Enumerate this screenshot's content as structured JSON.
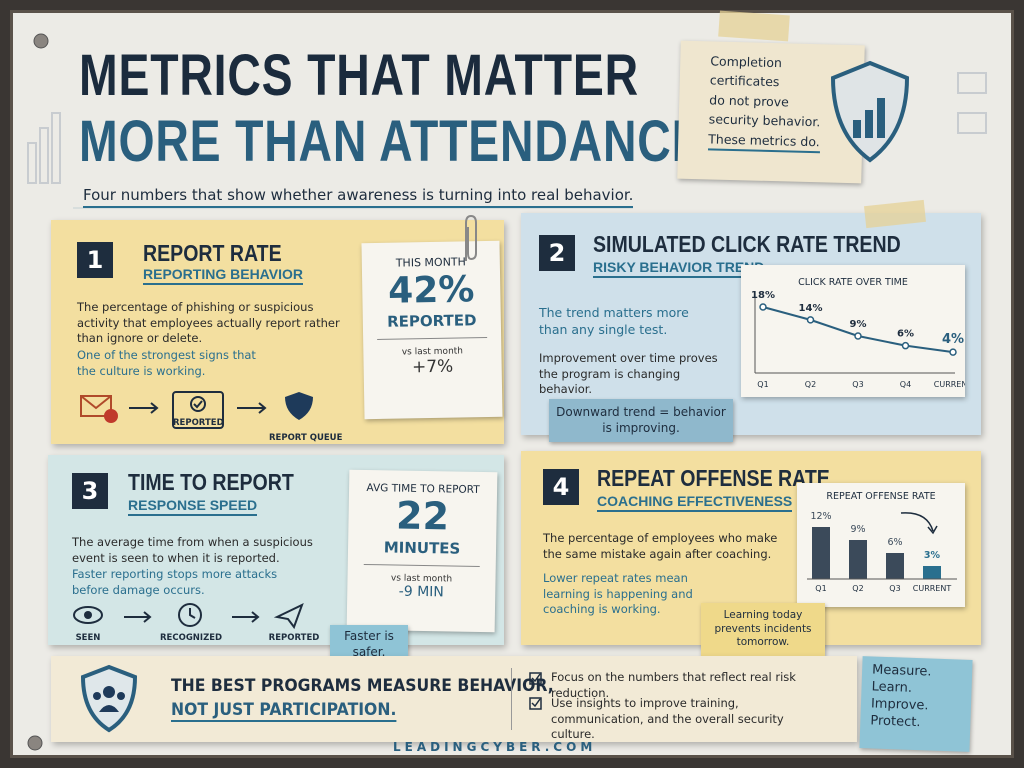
{
  "header": {
    "title_line1": "METRICS THAT MATTER",
    "title_line2": "MORE THAN ATTENDANCE",
    "subtitle": "Four numbers that show whether awareness is turning into real behavior."
  },
  "note": {
    "lines": [
      "Completion",
      "certificates",
      "do not prove",
      "security behavior.",
      "These metrics do."
    ]
  },
  "cards": [
    {
      "number": "1",
      "title": "REPORT RATE",
      "subtitle": "REPORTING BEHAVIOR",
      "body": "The percentage of phishing or suspicious activity that employees actually report rather than ignore or delete.",
      "highlight": "One of the strongest signs that the culture is working.",
      "flow": [
        "REPORTED",
        "REPORT QUEUE"
      ],
      "stat": {
        "label": "THIS MONTH",
        "value": "42%",
        "unit": "REPORTED",
        "compare": "vs last month",
        "change": "+7%"
      }
    },
    {
      "number": "2",
      "title": "SIMULATED CLICK RATE TREND",
      "subtitle": "RISKY BEHAVIOR TREND",
      "body": "The trend matters more than any single test.",
      "highlight": "Improvement over time proves the program is changing behavior.",
      "sticky": "Downward trend = behavior is improving.",
      "chart": {
        "type": "line",
        "title": "CLICK RATE OVER TIME",
        "categories": [
          "Q1",
          "Q2",
          "Q3",
          "Q4",
          "CURRENT"
        ],
        "values": [
          18,
          14,
          9,
          6,
          4
        ],
        "value_labels": [
          "18%",
          "14%",
          "9%",
          "6%",
          "4%"
        ],
        "color": "#2a5f7e"
      }
    },
    {
      "number": "3",
      "title": "TIME TO REPORT",
      "subtitle": "RESPONSE SPEED",
      "body": "The average time from when a suspicious event is seen to when it is reported.",
      "highlight": "Faster reporting stops more attacks before damage occurs.",
      "flow": [
        "SEEN",
        "RECOGNIZED",
        "REPORTED"
      ],
      "stat": {
        "label": "AVG TIME TO REPORT",
        "value": "22",
        "unit": "MINUTES",
        "compare": "vs last month",
        "change": "-9 MIN"
      },
      "sticky": "Faster is safer."
    },
    {
      "number": "4",
      "title": "REPEAT OFFENSE RATE",
      "subtitle": "COACHING EFFECTIVENESS",
      "body": "The percentage of employees who make the same mistake again after coaching.",
      "highlight": "Lower repeat rates mean learning is happening and coaching is working.",
      "sticky": "Learning today prevents incidents tomorrow.",
      "chart": {
        "type": "bar",
        "title": "REPEAT OFFENSE RATE",
        "categories": [
          "Q1",
          "Q2",
          "Q3",
          "CURRENT"
        ],
        "values": [
          12,
          9,
          6,
          3
        ],
        "value_labels": [
          "12%",
          "9%",
          "6%",
          "3%"
        ],
        "colors": [
          "#3b4a5a",
          "#3b4a5a",
          "#3b4a5a",
          "#2a6f8e"
        ]
      }
    }
  ],
  "footer": {
    "banner_line1": "THE BEST PROGRAMS MEASURE BEHAVIOR,",
    "banner_line2": "NOT JUST PARTICIPATION.",
    "bullets": [
      "Focus on the numbers that reflect real risk reduction.",
      "Use insights to improve training, communication, and the overall security culture."
    ],
    "sticky": "Measure. Learn. Improve. Protect.",
    "site": "LEADINGCYBER.COM"
  }
}
